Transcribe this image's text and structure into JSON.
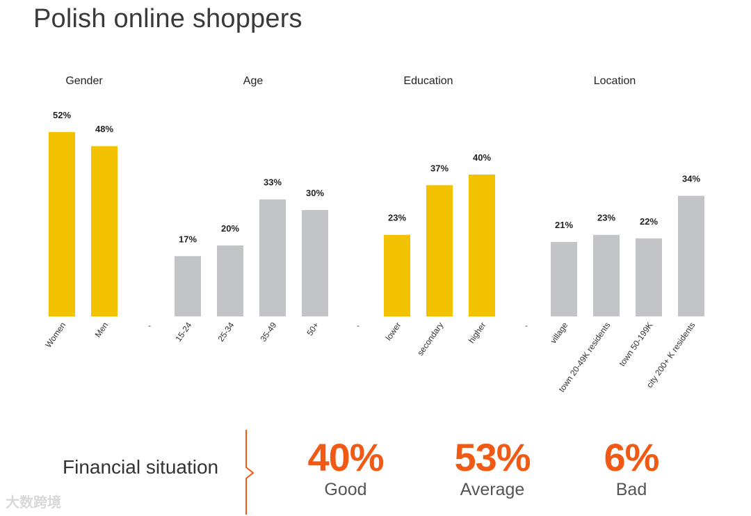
{
  "title": "Polish online shoppers",
  "colors": {
    "highlight": "#f2c200",
    "neutral": "#c3c4c8",
    "accent": "#f05a14"
  },
  "chart_data": {
    "type": "bar",
    "title": "Polish online shoppers",
    "value_unit": "%",
    "ylim": [
      0,
      52
    ],
    "groups": [
      {
        "name": "Gender",
        "categories": [
          "Women",
          "Men"
        ],
        "values": [
          52,
          48
        ],
        "highlight": [
          true,
          true
        ],
        "separator": ""
      },
      {
        "name": "Age",
        "categories": [
          "15-24",
          "25-34",
          "35-49",
          "50+"
        ],
        "values": [
          17,
          20,
          33,
          30
        ],
        "highlight": [
          false,
          false,
          false,
          false
        ],
        "separator": "-"
      },
      {
        "name": "Education",
        "categories": [
          "lower",
          "secondary",
          "higher"
        ],
        "values": [
          23,
          37,
          40
        ],
        "highlight": [
          true,
          true,
          true
        ],
        "separator": "-"
      },
      {
        "name": "Location",
        "categories": [
          "village",
          "town 20-49K residents",
          "town 50-199K",
          "city 200+ K residents"
        ],
        "values": [
          21,
          23,
          22,
          34
        ],
        "highlight": [
          false,
          false,
          false,
          false
        ],
        "separator": "-"
      }
    ]
  },
  "financial": {
    "label": "Financial situation",
    "items": [
      {
        "value": "40%",
        "label": "Good"
      },
      {
        "value": "53%",
        "label": "Average"
      },
      {
        "value": "6%",
        "label": "Bad"
      }
    ]
  },
  "watermark": "大数跨境"
}
